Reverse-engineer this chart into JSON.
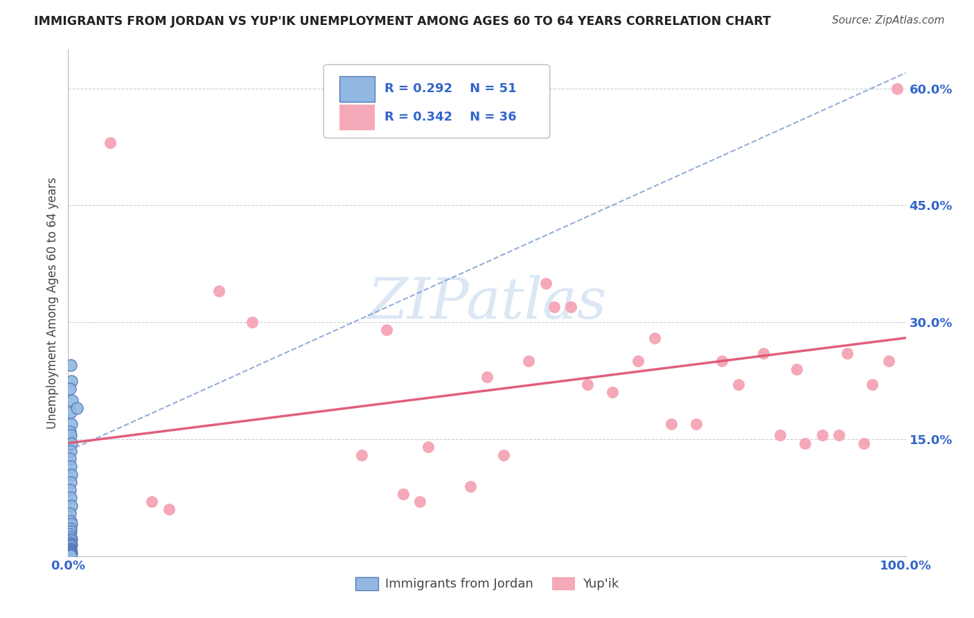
{
  "title": "IMMIGRANTS FROM JORDAN VS YUP'IK UNEMPLOYMENT AMONG AGES 60 TO 64 YEARS CORRELATION CHART",
  "source": "Source: ZipAtlas.com",
  "ylabel": "Unemployment Among Ages 60 to 64 years",
  "xlim": [
    0.0,
    1.0
  ],
  "ylim": [
    0.0,
    0.65
  ],
  "xticks": [
    0.0,
    0.2,
    0.4,
    0.6,
    0.8,
    1.0
  ],
  "xtick_labels": [
    "0.0%",
    "",
    "",
    "",
    "",
    "100.0%"
  ],
  "yticks": [
    0.0,
    0.15,
    0.3,
    0.45,
    0.6
  ],
  "ytick_labels": [
    "",
    "15.0%",
    "30.0%",
    "45.0%",
    "60.0%"
  ],
  "legend_R_blue": "R = 0.292",
  "legend_N_blue": "N = 51",
  "legend_R_pink": "R = 0.342",
  "legend_N_pink": "N = 36",
  "blue_color": "#90B8E0",
  "pink_color": "#F5A8B8",
  "blue_edge_color": "#5577BB",
  "pink_trend_color": "#E05575",
  "blue_trend_color": "#7799CC",
  "watermark_color": "#C5D8EE",
  "grid_color": "#CCCCCC",
  "blue_scatter_x": [
    0.003,
    0.004,
    0.002,
    0.005,
    0.003,
    0.004,
    0.002,
    0.003,
    0.004,
    0.003,
    0.002,
    0.003,
    0.004,
    0.003,
    0.002,
    0.003,
    0.004,
    0.002,
    0.003,
    0.004,
    0.003,
    0.01,
    0.003,
    0.002,
    0.003,
    0.004,
    0.003,
    0.002,
    0.003,
    0.004,
    0.003,
    0.002,
    0.003,
    0.002,
    0.003,
    0.003,
    0.002,
    0.003,
    0.004,
    0.002,
    0.003,
    0.003,
    0.002,
    0.003,
    0.002,
    0.003,
    0.003,
    0.002,
    0.003,
    0.002,
    0.003
  ],
  "blue_scatter_y": [
    0.245,
    0.225,
    0.215,
    0.2,
    0.185,
    0.17,
    0.16,
    0.155,
    0.145,
    0.135,
    0.125,
    0.115,
    0.105,
    0.095,
    0.085,
    0.075,
    0.065,
    0.055,
    0.045,
    0.042,
    0.035,
    0.19,
    0.032,
    0.028,
    0.025,
    0.022,
    0.02,
    0.018,
    0.016,
    0.015,
    0.014,
    0.012,
    0.01,
    0.009,
    0.008,
    0.007,
    0.006,
    0.005,
    0.004,
    0.004,
    0.003,
    0.003,
    0.002,
    0.002,
    0.002,
    0.001,
    0.001,
    0.001,
    0.001,
    0.001,
    0.001
  ],
  "pink_scatter_x": [
    0.05,
    0.1,
    0.12,
    0.35,
    0.4,
    0.42,
    0.48,
    0.52,
    0.55,
    0.58,
    0.6,
    0.62,
    0.65,
    0.68,
    0.7,
    0.72,
    0.75,
    0.78,
    0.8,
    0.83,
    0.85,
    0.87,
    0.88,
    0.9,
    0.92,
    0.93,
    0.95,
    0.96,
    0.98,
    0.99,
    0.18,
    0.22,
    0.38,
    0.43,
    0.5,
    0.57
  ],
  "pink_scatter_y": [
    0.53,
    0.07,
    0.06,
    0.13,
    0.08,
    0.07,
    0.09,
    0.13,
    0.25,
    0.32,
    0.32,
    0.22,
    0.21,
    0.25,
    0.28,
    0.17,
    0.17,
    0.25,
    0.22,
    0.26,
    0.155,
    0.24,
    0.145,
    0.155,
    0.155,
    0.26,
    0.145,
    0.22,
    0.25,
    0.6,
    0.34,
    0.3,
    0.29,
    0.14,
    0.23,
    0.35
  ],
  "blue_trend_x": [
    0.0,
    1.0
  ],
  "blue_trend_y": [
    0.135,
    0.62
  ],
  "pink_trend_x": [
    0.0,
    1.0
  ],
  "pink_trend_y": [
    0.145,
    0.28
  ]
}
